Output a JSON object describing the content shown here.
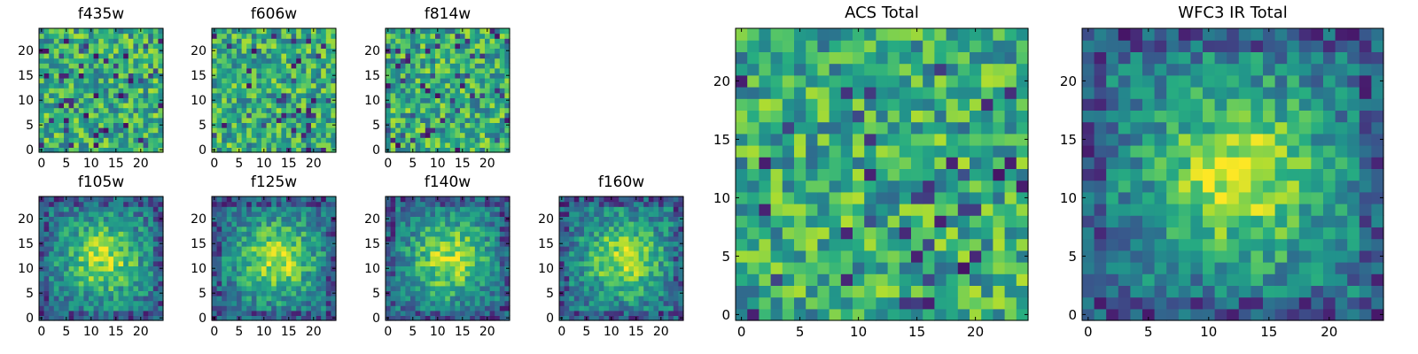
{
  "chart_data": [
    {
      "type": "heatmap",
      "title": "f435w",
      "xticks": [
        0,
        5,
        10,
        15,
        20
      ],
      "yticks": [
        0,
        5,
        10,
        15,
        20
      ],
      "xlim": [
        -0.5,
        24.5
      ],
      "ylim": [
        -0.5,
        24.5
      ],
      "grid_size": 25,
      "colormap": "viridis",
      "pattern": "noise"
    },
    {
      "type": "heatmap",
      "title": "f606w",
      "xticks": [
        0,
        5,
        10,
        15,
        20
      ],
      "yticks": [
        0,
        5,
        10,
        15,
        20
      ],
      "xlim": [
        -0.5,
        24.5
      ],
      "ylim": [
        -0.5,
        24.5
      ],
      "grid_size": 25,
      "colormap": "viridis",
      "pattern": "noise"
    },
    {
      "type": "heatmap",
      "title": "f814w",
      "xticks": [
        0,
        5,
        10,
        15,
        20
      ],
      "yticks": [
        0,
        5,
        10,
        15,
        20
      ],
      "xlim": [
        -0.5,
        24.5
      ],
      "ylim": [
        -0.5,
        24.5
      ],
      "grid_size": 25,
      "colormap": "viridis",
      "pattern": "noise"
    },
    {
      "type": "heatmap",
      "title": "f105w",
      "xticks": [
        0,
        5,
        10,
        15,
        20
      ],
      "yticks": [
        0,
        5,
        10,
        15,
        20
      ],
      "xlim": [
        -0.5,
        24.5
      ],
      "ylim": [
        -0.5,
        24.5
      ],
      "grid_size": 25,
      "colormap": "viridis",
      "pattern": "source"
    },
    {
      "type": "heatmap",
      "title": "f125w",
      "xticks": [
        0,
        5,
        10,
        15,
        20
      ],
      "yticks": [
        0,
        5,
        10,
        15,
        20
      ],
      "xlim": [
        -0.5,
        24.5
      ],
      "ylim": [
        -0.5,
        24.5
      ],
      "grid_size": 25,
      "colormap": "viridis",
      "pattern": "source"
    },
    {
      "type": "heatmap",
      "title": "f140w",
      "xticks": [
        0,
        5,
        10,
        15,
        20
      ],
      "yticks": [
        0,
        5,
        10,
        15,
        20
      ],
      "xlim": [
        -0.5,
        24.5
      ],
      "ylim": [
        -0.5,
        24.5
      ],
      "grid_size": 25,
      "colormap": "viridis",
      "pattern": "source"
    },
    {
      "type": "heatmap",
      "title": "f160w",
      "xticks": [
        0,
        5,
        10,
        15,
        20
      ],
      "yticks": [
        0,
        5,
        10,
        15,
        20
      ],
      "xlim": [
        -0.5,
        24.5
      ],
      "ylim": [
        -0.5,
        24.5
      ],
      "grid_size": 25,
      "colormap": "viridis",
      "pattern": "source"
    },
    {
      "type": "heatmap",
      "title": "ACS Total",
      "xticks": [
        0,
        5,
        10,
        15,
        20
      ],
      "yticks": [
        0,
        5,
        10,
        15,
        20
      ],
      "xlim": [
        -0.5,
        24.5
      ],
      "ylim": [
        -0.5,
        24.5
      ],
      "grid_size": 25,
      "colormap": "viridis",
      "pattern": "noise"
    },
    {
      "type": "heatmap",
      "title": "WFC3 IR Total",
      "xticks": [
        0,
        5,
        10,
        15,
        20
      ],
      "yticks": [
        0,
        5,
        10,
        15,
        20
      ],
      "xlim": [
        -0.5,
        24.5
      ],
      "ylim": [
        -0.5,
        24.5
      ],
      "grid_size": 25,
      "colormap": "viridis",
      "pattern": "source"
    }
  ]
}
